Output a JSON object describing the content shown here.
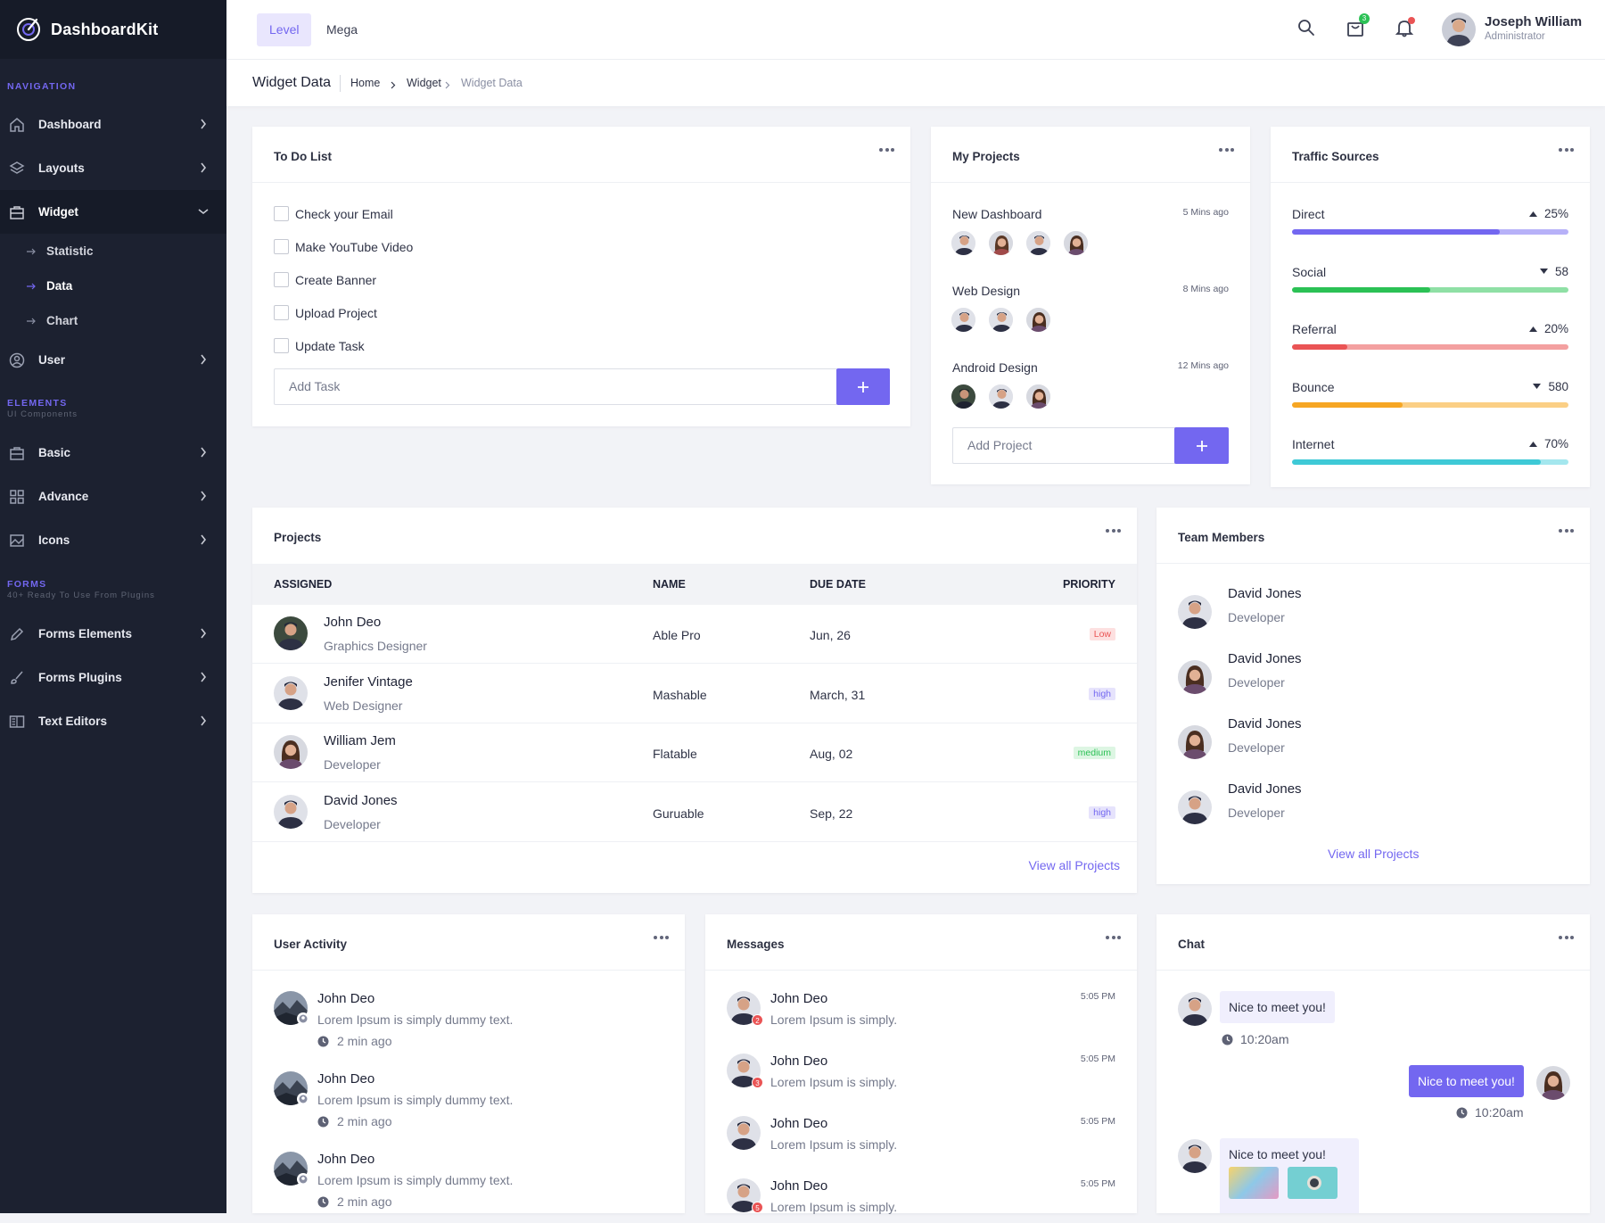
{
  "app": {
    "name": "DashboardKit"
  },
  "nav": {
    "section1": "NAVIGATION",
    "items": [
      {
        "label": "Dashboard",
        "icon": "home-icon"
      },
      {
        "label": "Layouts",
        "icon": "layers-icon"
      },
      {
        "label": "Widget",
        "icon": "briefcase-icon",
        "active": true
      }
    ],
    "widget_sub": [
      {
        "label": "Statistic"
      },
      {
        "label": "Data",
        "active": true
      },
      {
        "label": "Chart"
      }
    ],
    "user": {
      "label": "User",
      "icon": "user-circle-icon"
    },
    "section2": "ELEMENTS",
    "section2_sub": "UI Components",
    "elements": [
      {
        "label": "Basic",
        "icon": "briefcase-icon"
      },
      {
        "label": "Advance",
        "icon": "grid-icon"
      },
      {
        "label": "Icons",
        "icon": "image-icon"
      }
    ],
    "section3": "FORMS",
    "section3_sub": "40+ Ready To Use From Plugins",
    "forms": [
      {
        "label": "Forms Elements",
        "icon": "pencil-icon"
      },
      {
        "label": "Forms Plugins",
        "icon": "brush-icon"
      },
      {
        "label": "Text Editors",
        "icon": "columns-icon"
      }
    ]
  },
  "header": {
    "tabs": [
      "Level",
      "Mega"
    ],
    "cart_badge": "3",
    "user_name": "Joseph William",
    "user_role": "Administrator"
  },
  "breadcrumb": {
    "title": "Widget Data",
    "items": [
      "Home",
      "Widget",
      "Widget Data"
    ]
  },
  "todo": {
    "title": "To Do List",
    "items": [
      "Check your Email",
      "Make YouTube Video",
      "Create Banner",
      "Upload Project",
      "Update Task"
    ],
    "placeholder": "Add Task"
  },
  "my_projects": {
    "title": "My Projects",
    "items": [
      {
        "name": "New Dashboard",
        "time": "5 Mins ago"
      },
      {
        "name": "Web Design",
        "time": "8 Mins ago"
      },
      {
        "name": "Android Design",
        "time": "12 Mins ago"
      }
    ],
    "placeholder": "Add Project"
  },
  "traffic": {
    "title": "Traffic Sources",
    "items": [
      {
        "label": "Direct",
        "value": "25%",
        "trend": "up",
        "fill": 0.75,
        "color": "#7367f0",
        "track": "#b7b1f8"
      },
      {
        "label": "Social",
        "value": "58",
        "trend": "down",
        "fill": 0.5,
        "color": "#2bc155",
        "track": "#8fe0a5"
      },
      {
        "label": "Referral",
        "value": "20%",
        "trend": "up",
        "fill": 0.2,
        "color": "#ea5455",
        "track": "#f3a0a0"
      },
      {
        "label": "Bounce",
        "value": "580",
        "trend": "down",
        "fill": 0.4,
        "color": "#f6a623",
        "track": "#fbcf85"
      },
      {
        "label": "Internet",
        "value": "70%",
        "trend": "up",
        "fill": 0.9,
        "color": "#3ec9d6",
        "track": "#a4e7ee"
      }
    ]
  },
  "projects": {
    "title": "Projects",
    "headers": [
      "ASSIGNED",
      "NAME",
      "DUE DATE",
      "PRIORITY"
    ],
    "rows": [
      {
        "name": "John Deo",
        "role": "Graphics Designer",
        "project": "Able Pro",
        "due": "Jun, 26",
        "priority": "Low",
        "level": "low"
      },
      {
        "name": "Jenifer Vintage",
        "role": "Web Designer",
        "project": "Mashable",
        "due": "March, 31",
        "priority": "high",
        "level": "high"
      },
      {
        "name": "William Jem",
        "role": "Developer",
        "project": "Flatable",
        "due": "Aug, 02",
        "priority": "medium",
        "level": "med"
      },
      {
        "name": "David Jones",
        "role": "Developer",
        "project": "Guruable",
        "due": "Sep, 22",
        "priority": "high",
        "level": "high"
      }
    ],
    "link": "View all Projects"
  },
  "team": {
    "title": "Team Members",
    "members": [
      {
        "name": "David Jones",
        "role": "Developer"
      },
      {
        "name": "David Jones",
        "role": "Developer"
      },
      {
        "name": "David Jones",
        "role": "Developer"
      },
      {
        "name": "David Jones",
        "role": "Developer"
      }
    ],
    "link": "View all Projects"
  },
  "activity": {
    "title": "User Activity",
    "items": [
      {
        "name": "John Deo",
        "text": "Lorem Ipsum is simply dummy text.",
        "time": "2 min ago"
      },
      {
        "name": "John Deo",
        "text": "Lorem Ipsum is simply dummy text.",
        "time": "2 min ago"
      },
      {
        "name": "John Deo",
        "text": "Lorem Ipsum is simply dummy text.",
        "time": "2 min ago"
      }
    ]
  },
  "messages": {
    "title": "Messages",
    "items": [
      {
        "name": "John Deo",
        "text": "Lorem Ipsum is simply.",
        "time": "5:05 PM",
        "badge": "2"
      },
      {
        "name": "John Deo",
        "text": "Lorem Ipsum is simply.",
        "time": "5:05 PM",
        "badge": "3"
      },
      {
        "name": "John Deo",
        "text": "Lorem Ipsum is simply.",
        "time": "5:05 PM",
        "badge": ""
      },
      {
        "name": "John Deo",
        "text": "Lorem Ipsum is simply.",
        "time": "5:05 PM",
        "badge": "5"
      }
    ]
  },
  "chat": {
    "title": "Chat",
    "messages": [
      {
        "text": "Nice to meet you!",
        "time": "10:20am",
        "side": "in"
      },
      {
        "text": "Nice to meet you!",
        "time": "10:20am",
        "side": "out"
      },
      {
        "text": "Nice to meet you!",
        "side": "in"
      }
    ]
  }
}
